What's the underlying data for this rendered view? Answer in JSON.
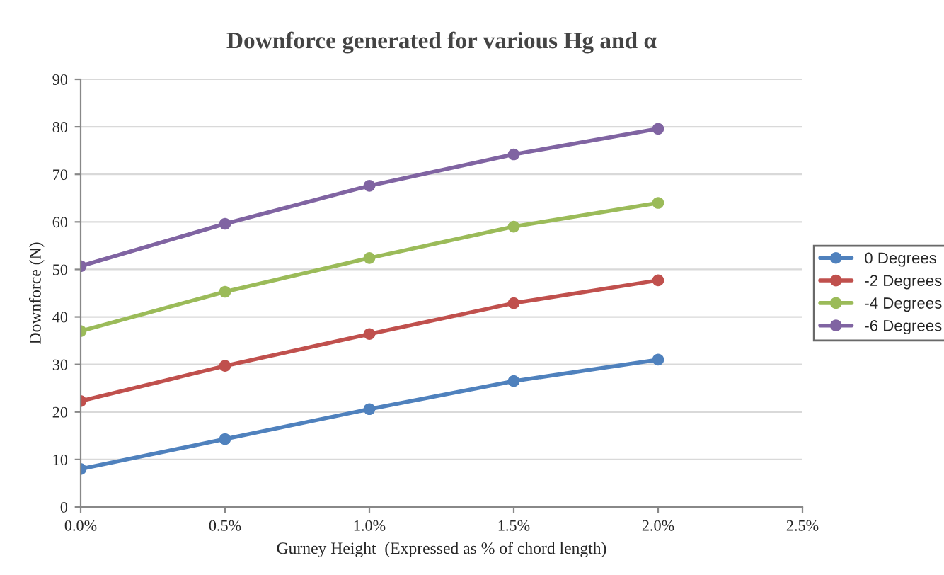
{
  "chart_data": {
    "type": "line",
    "title": "Downforce generated for various Hg and α",
    "xlabel": "Gurney Height  (Expressed as % of chord length)",
    "ylabel": "Downforce (N)",
    "x": [
      0,
      0.5,
      1.0,
      1.5,
      2.0
    ],
    "series": [
      {
        "name": "0 Degrees",
        "color": "#4f81bd",
        "values": [
          8.0,
          14.3,
          20.6,
          26.5,
          31.0
        ]
      },
      {
        "name": "-2 Degrees",
        "color": "#c0504d",
        "values": [
          22.3,
          29.7,
          36.4,
          42.9,
          47.7
        ]
      },
      {
        "name": "-4 Degrees",
        "color": "#9bbb59",
        "values": [
          37.0,
          45.3,
          52.4,
          59.0,
          64.0
        ]
      },
      {
        "name": "-6 Degrees",
        "color": "#8064a2",
        "values": [
          50.7,
          59.6,
          67.6,
          74.2,
          79.6
        ]
      }
    ],
    "xlim": [
      0,
      2.5
    ],
    "xticks": [
      {
        "value": 0,
        "label": "0.0%"
      },
      {
        "value": 0.5,
        "label": "0.5%"
      },
      {
        "value": 1.0,
        "label": "1.0%"
      },
      {
        "value": 1.5,
        "label": "1.5%"
      },
      {
        "value": 2.0,
        "label": "2.0%"
      },
      {
        "value": 2.5,
        "label": "2.5%"
      }
    ],
    "ylim": [
      0,
      90
    ],
    "yticks": [
      0,
      10,
      20,
      30,
      40,
      50,
      60,
      70,
      80,
      90
    ],
    "grid": "y",
    "legend": "right",
    "marker": "circle",
    "line_style": "solid"
  }
}
